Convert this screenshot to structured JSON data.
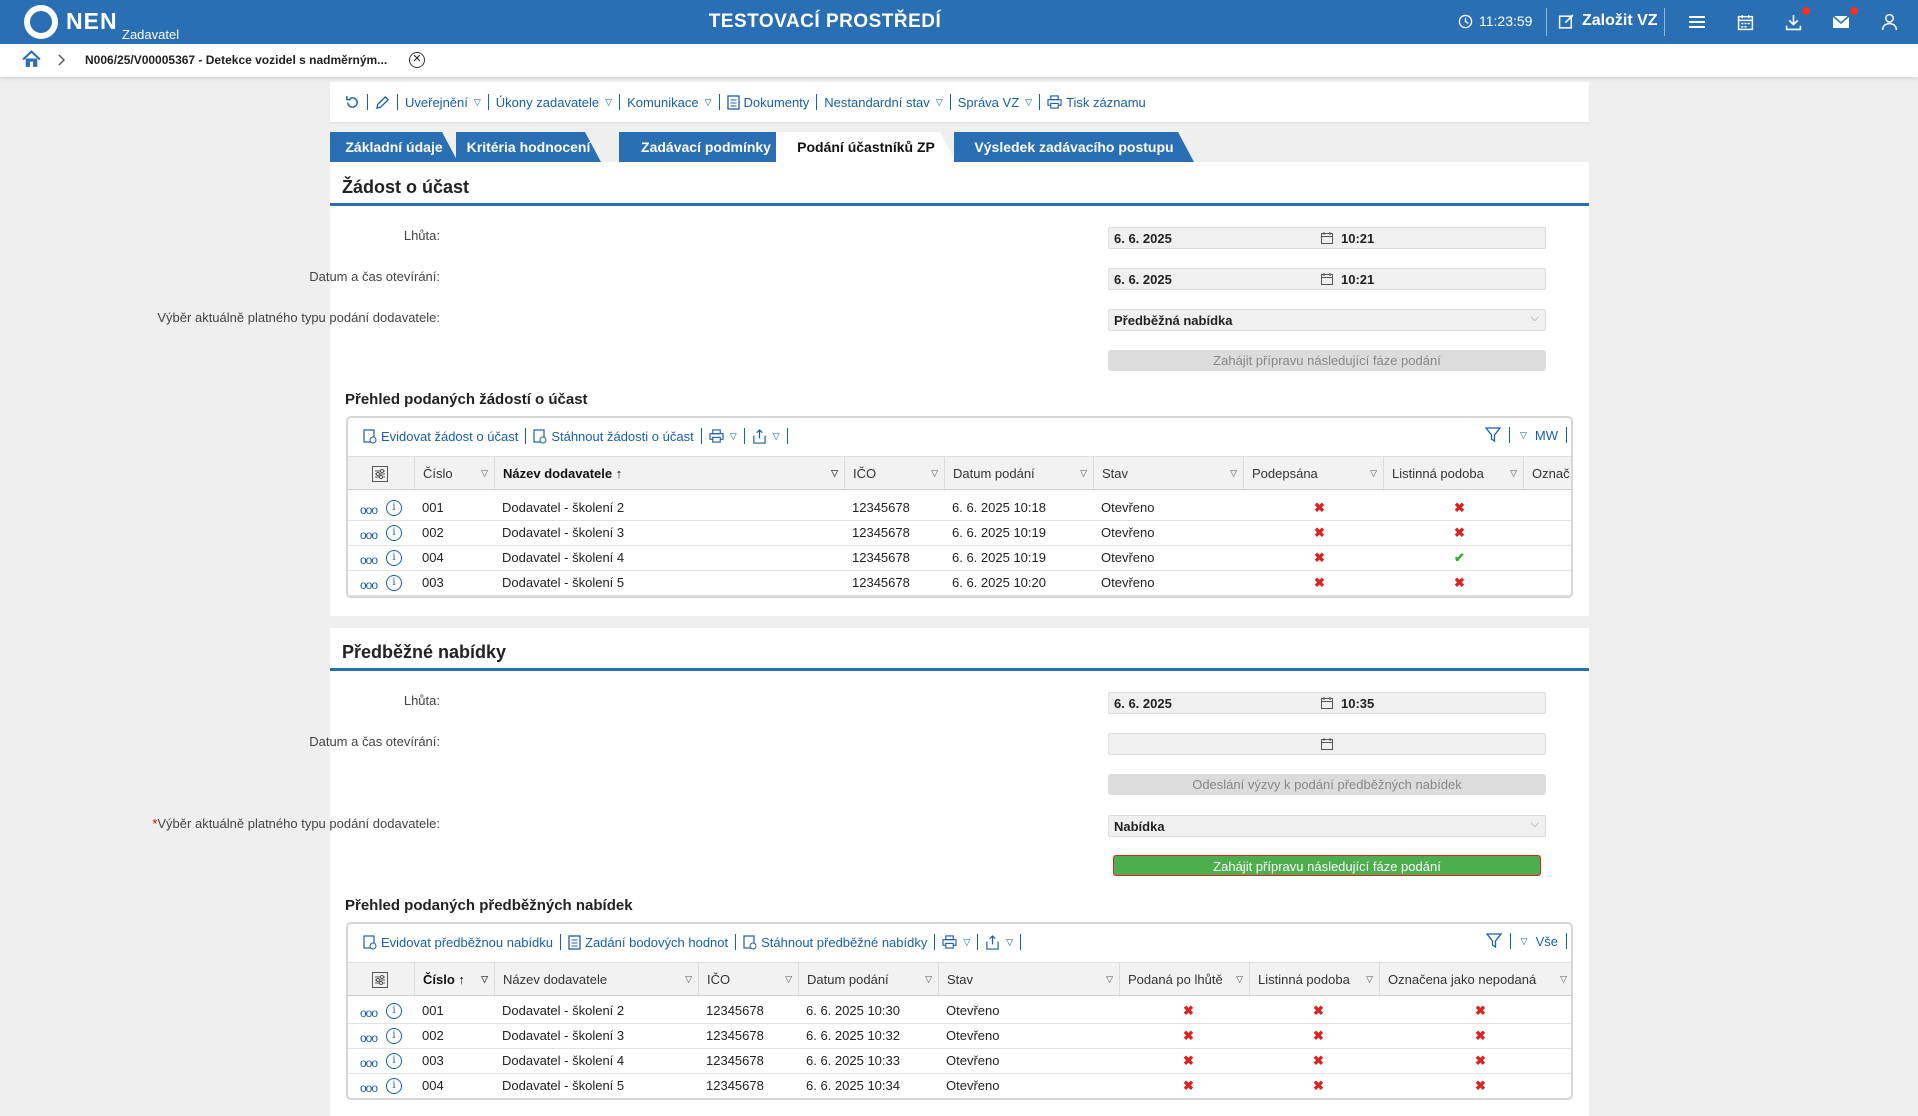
{
  "topbar": {
    "logo_text": "NEN",
    "logo_sub": "Zadavatel",
    "env_title": "TESTOVACÍ PROSTŘEDÍ",
    "clock": "11:23:59",
    "new_vz_label": "Založit VZ"
  },
  "breadcrumb": {
    "item": "N006/25/V00005367 - Detekce vozidel s nadměrným..."
  },
  "toolbar": {
    "items": [
      "Uveřejnění",
      "Úkony zadavatele",
      "Komunikace",
      "Dokumenty",
      "Nestandardní stav",
      "Správa VZ",
      "Tisk záznamu"
    ]
  },
  "tabs": [
    "Základní údaje",
    "Kritéria hodnocení",
    "Zadávací podmínky",
    "Podání účastníků ZP",
    "Výsledek zadávacího postupu"
  ],
  "section1": {
    "title": "Žádost o účast",
    "deadline_label": "Lhůta:",
    "deadline_date": "6. 6. 2025",
    "deadline_time": "10:21",
    "open_label": "Datum a čas otevírání:",
    "open_date": "6. 6. 2025",
    "open_time": "10:21",
    "type_label": "Výběr aktuálně platného typu podání dodavatele:",
    "type_value": "Předběžná nabídka",
    "button": "Zahájit přípravu následující fáze podání",
    "overview_title": "Přehled podaných žádostí o účast",
    "grid_tools": [
      "Evidovat žádost o účast",
      "Stáhnout žádosti o účast"
    ],
    "grid_right": "MW",
    "columns": [
      "Číslo",
      "Název dodavatele",
      "IČO",
      "Datum podání",
      "Stav",
      "Podepsána",
      "Listinná podoba",
      "Označ"
    ],
    "rows": [
      {
        "cislo": "001",
        "nazev": "Dodavatel - školení 2",
        "ico": "12345678",
        "datum": "6. 6. 2025 10:18",
        "stav": "Otevřeno",
        "podepsana": "✖",
        "listinna": "✖"
      },
      {
        "cislo": "002",
        "nazev": "Dodavatel - školení 3",
        "ico": "12345678",
        "datum": "6. 6. 2025 10:19",
        "stav": "Otevřeno",
        "podepsana": "✖",
        "listinna": "✖"
      },
      {
        "cislo": "004",
        "nazev": "Dodavatel - školení 4",
        "ico": "12345678",
        "datum": "6. 6. 2025 10:19",
        "stav": "Otevřeno",
        "podepsana": "✖",
        "listinna": "✔"
      },
      {
        "cislo": "003",
        "nazev": "Dodavatel - školení 5",
        "ico": "12345678",
        "datum": "6. 6. 2025 10:20",
        "stav": "Otevřeno",
        "podepsana": "✖",
        "listinna": "✖"
      }
    ]
  },
  "section2": {
    "title": "Předběžné nabídky",
    "deadline_label": "Lhůta:",
    "deadline_date": "6. 6. 2025",
    "deadline_time": "10:35",
    "open_label": "Datum a čas otevírání:",
    "send_button": "Odeslání výzvy k podání předběžných nabídek",
    "type_label": "Výběr aktuálně platného typu podání dodavatele:",
    "type_value": "Nabídka",
    "button": "Zahájit přípravu následující fáze podání",
    "overview_title": "Přehled podaných předběžných nabídek",
    "grid_tools": [
      "Evidovat předběžnou nabídku",
      "Zadání bodových hodnot",
      "Stáhnout předběžné nabídky"
    ],
    "grid_right": "Vše",
    "columns": [
      "Číslo",
      "Název dodavatele",
      "IČO",
      "Datum podání",
      "Stav",
      "Podaná po lhůtě",
      "Listinná podoba",
      "Označena jako nepodaná"
    ],
    "rows": [
      {
        "cislo": "001",
        "nazev": "Dodavatel - školení 2",
        "ico": "12345678",
        "datum": "6. 6. 2025 10:30",
        "stav": "Otevřeno",
        "po_lhute": "✖",
        "listinna": "✖",
        "nepodana": "✖"
      },
      {
        "cislo": "002",
        "nazev": "Dodavatel - školení 3",
        "ico": "12345678",
        "datum": "6. 6. 2025 10:32",
        "stav": "Otevřeno",
        "po_lhute": "✖",
        "listinna": "✖",
        "nepodana": "✖"
      },
      {
        "cislo": "003",
        "nazev": "Dodavatel - školení 4",
        "ico": "12345678",
        "datum": "6. 6. 2025 10:33",
        "stav": "Otevřeno",
        "po_lhute": "✖",
        "listinna": "✖",
        "nepodana": "✖"
      },
      {
        "cislo": "004",
        "nazev": "Dodavatel - školení 5",
        "ico": "12345678",
        "datum": "6. 6. 2025 10:34",
        "stav": "Otevřeno",
        "po_lhute": "✖",
        "listinna": "✖",
        "nepodana": "✖"
      }
    ]
  },
  "colors": {
    "brand": "#2a6fb4",
    "link": "#1a5fa8",
    "error": "#dd2222",
    "success": "#33aa33",
    "green_button": "#4cae4c"
  }
}
